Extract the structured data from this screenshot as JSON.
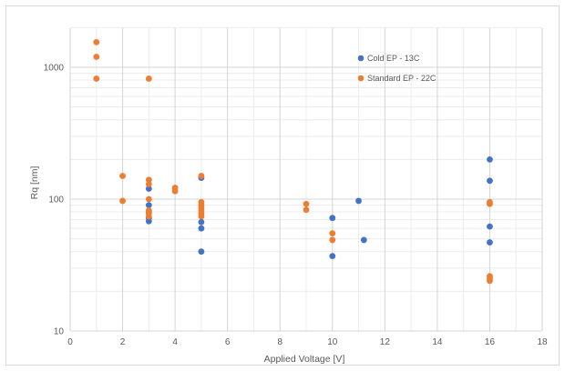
{
  "chart_data": {
    "type": "scatter",
    "title": "",
    "xlabel": "Applied Voltage [V]",
    "ylabel": "Rq [nm]",
    "xlim": [
      0,
      18
    ],
    "ylim": [
      10,
      2000
    ],
    "y_scale": "log",
    "x_ticks": [
      0,
      2,
      4,
      6,
      8,
      10,
      12,
      14,
      16,
      18
    ],
    "y_ticks": [
      10,
      100,
      1000
    ],
    "x_tick_labels": [
      "0",
      "2",
      "4",
      "6",
      "8",
      "10",
      "12",
      "14",
      "16",
      "18"
    ],
    "y_tick_labels": [
      "10",
      "100",
      "1000"
    ],
    "grid": true,
    "legend_position": "top-right",
    "series": [
      {
        "name": "Cold EP - 13C",
        "color": "#4472C4",
        "points": [
          {
            "x": 3,
            "y": 120
          },
          {
            "x": 3,
            "y": 90
          },
          {
            "x": 3,
            "y": 80
          },
          {
            "x": 3,
            "y": 72
          },
          {
            "x": 3,
            "y": 68
          },
          {
            "x": 5,
            "y": 145
          },
          {
            "x": 5,
            "y": 67
          },
          {
            "x": 5,
            "y": 60
          },
          {
            "x": 5,
            "y": 40
          },
          {
            "x": 10,
            "y": 72
          },
          {
            "x": 10,
            "y": 37
          },
          {
            "x": 11,
            "y": 97
          },
          {
            "x": 11.2,
            "y": 49
          },
          {
            "x": 16,
            "y": 200
          },
          {
            "x": 16,
            "y": 138
          },
          {
            "x": 16,
            "y": 62
          },
          {
            "x": 16,
            "y": 47
          }
        ]
      },
      {
        "name": "Standard EP - 22C",
        "color": "#ED7D31",
        "points": [
          {
            "x": 1,
            "y": 1550
          },
          {
            "x": 1,
            "y": 1200
          },
          {
            "x": 1,
            "y": 820
          },
          {
            "x": 2,
            "y": 150
          },
          {
            "x": 2,
            "y": 97
          },
          {
            "x": 3,
            "y": 820
          },
          {
            "x": 3,
            "y": 140
          },
          {
            "x": 3,
            "y": 130
          },
          {
            "x": 3,
            "y": 100
          },
          {
            "x": 3,
            "y": 82
          },
          {
            "x": 3,
            "y": 78
          },
          {
            "x": 3,
            "y": 74
          },
          {
            "x": 4,
            "y": 122
          },
          {
            "x": 4,
            "y": 115
          },
          {
            "x": 5,
            "y": 150
          },
          {
            "x": 5,
            "y": 95
          },
          {
            "x": 5,
            "y": 90
          },
          {
            "x": 5,
            "y": 86
          },
          {
            "x": 5,
            "y": 82
          },
          {
            "x": 5,
            "y": 78
          },
          {
            "x": 5,
            "y": 74
          },
          {
            "x": 9,
            "y": 92
          },
          {
            "x": 9,
            "y": 83
          },
          {
            "x": 10,
            "y": 55
          },
          {
            "x": 10,
            "y": 49
          },
          {
            "x": 16,
            "y": 95
          },
          {
            "x": 16,
            "y": 92
          },
          {
            "x": 16,
            "y": 26
          },
          {
            "x": 16,
            "y": 25
          },
          {
            "x": 16,
            "y": 24
          }
        ]
      }
    ]
  }
}
